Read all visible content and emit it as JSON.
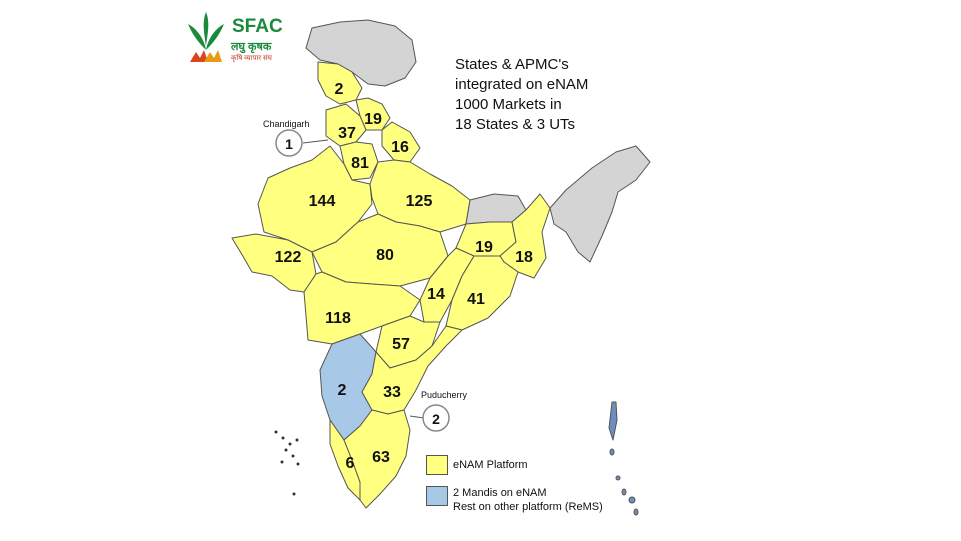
{
  "logo": {
    "title": "SFAC",
    "hindi": "लघु कृषक",
    "tagline": "कृषि व्यापार संघ"
  },
  "heading": {
    "lines": [
      "States & APMC's",
      "integrated on eNAM",
      "1000 Markets in",
      "18 States & 3 UTs"
    ]
  },
  "colors": {
    "enam": "#ffff80",
    "other": "#a8c8e8",
    "non_integrated": "#d4d4d4",
    "border": "#555555"
  },
  "regions": {
    "jk": "2",
    "punjab": "37",
    "himachal": "19",
    "uttarakhand": "16",
    "haryana": "81",
    "rajasthan": "144",
    "up": "125",
    "gujarat": "122",
    "mp": "80",
    "bihar": "19",
    "west_bengal": "18",
    "chhattisgarh": "14",
    "odisha": "41",
    "maharashtra": "118",
    "telangana": "57",
    "karnataka": "2",
    "andhra": "33",
    "kerala": "6",
    "tamil_nadu": "63"
  },
  "callouts": {
    "chandigarh": {
      "label": "Chandigarh",
      "value": "1"
    },
    "puducherry": {
      "label": "Puducherry",
      "value": "2"
    }
  },
  "legend": {
    "enam": "eNAM Platform",
    "other_line1": "2 Mandis on eNAM",
    "other_line2": "Rest on other platform (ReMS)"
  }
}
